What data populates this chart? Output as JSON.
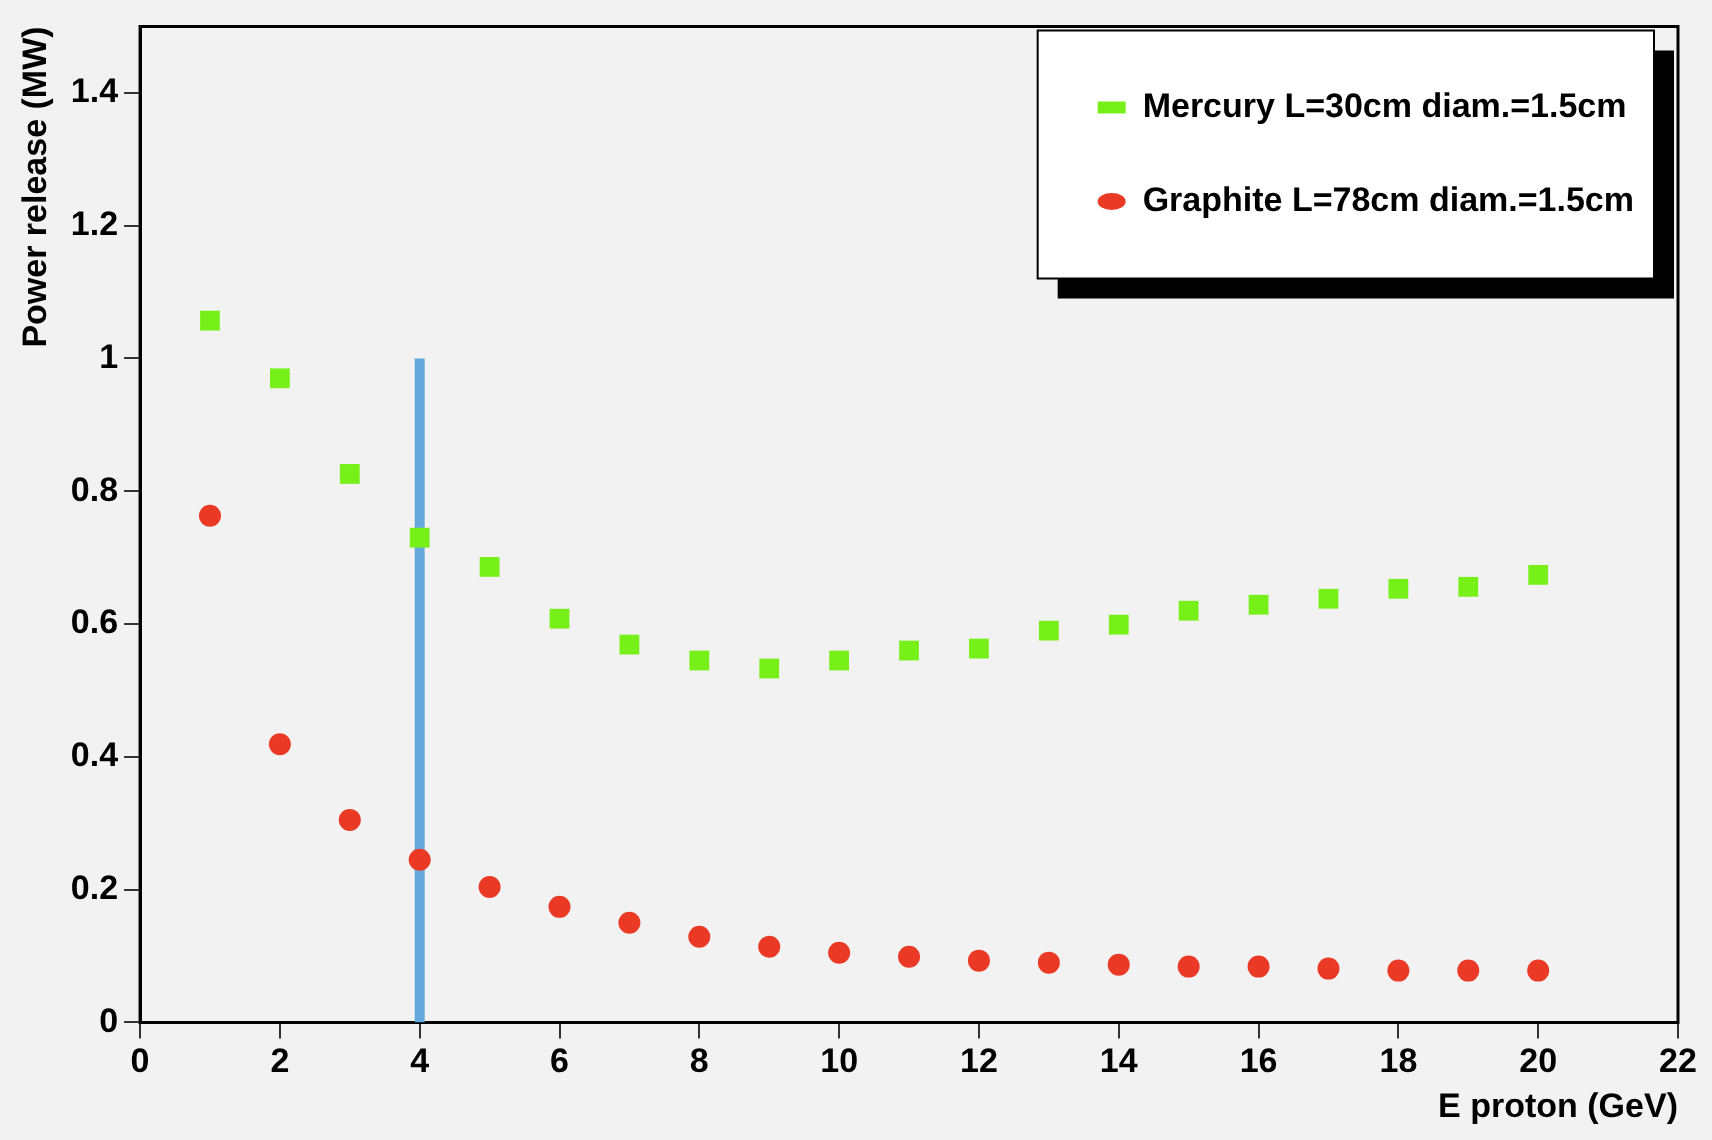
{
  "chart_data": {
    "type": "scatter",
    "xlabel": "E proton (GeV)",
    "ylabel": "Power release (MW)",
    "xlim": [
      0,
      22
    ],
    "xticks": [
      0,
      2,
      4,
      6,
      8,
      10,
      12,
      14,
      16,
      18,
      20,
      22
    ],
    "ylim": [
      0,
      1.5
    ],
    "yticks": [
      0,
      0.2,
      0.4,
      0.6,
      0.8,
      1,
      1.2,
      1.4
    ],
    "grid": false,
    "legend": "top right",
    "x": [
      1,
      2,
      3,
      4,
      5,
      6,
      7,
      8,
      9,
      10,
      11,
      12,
      13,
      14,
      15,
      16,
      17,
      18,
      19,
      20
    ],
    "series": [
      {
        "name": "Mercury L=30cm diam.=1.5cm",
        "color": "#77f01a",
        "marker": "square",
        "values": [
          1.057,
          0.97,
          0.826,
          0.73,
          0.686,
          0.608,
          0.569,
          0.545,
          0.533,
          0.545,
          0.56,
          0.563,
          0.59,
          0.599,
          0.62,
          0.629,
          0.638,
          0.653,
          0.656,
          0.674
        ]
      },
      {
        "name": "Graphite L=78cm diam.=1.5cm",
        "color": "#ea3a26",
        "marker": "circle",
        "values": [
          0.763,
          0.419,
          0.305,
          0.245,
          0.204,
          0.174,
          0.15,
          0.129,
          0.114,
          0.105,
          0.099,
          0.093,
          0.09,
          0.087,
          0.084,
          0.084,
          0.081,
          0.078,
          0.078,
          0.078
        ]
      },
      {
        "type": "line",
        "color": "#65a9dc",
        "marker": "none",
        "x": [
          4,
          4
        ],
        "values": [
          0,
          1
        ]
      }
    ]
  }
}
